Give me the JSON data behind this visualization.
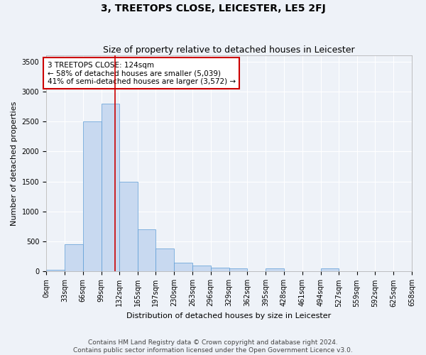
{
  "title": "3, TREETOPS CLOSE, LEICESTER, LE5 2FJ",
  "subtitle": "Size of property relative to detached houses in Leicester",
  "xlabel": "Distribution of detached houses by size in Leicester",
  "ylabel": "Number of detached properties",
  "bin_edges": [
    0,
    33,
    66,
    99,
    132,
    165,
    197,
    230,
    263,
    296,
    329,
    362,
    395,
    428,
    461,
    494,
    527,
    559,
    592,
    625,
    658
  ],
  "bar_heights": [
    30,
    450,
    2500,
    2800,
    1500,
    700,
    380,
    150,
    100,
    60,
    50,
    10,
    55,
    10,
    5,
    55,
    5,
    5,
    5,
    5
  ],
  "bar_color": "#c8d9f0",
  "bar_edge_color": "#5b9bd5",
  "property_size": 124,
  "vline_color": "#cc0000",
  "annotation_text": "3 TREETOPS CLOSE: 124sqm\n← 58% of detached houses are smaller (5,039)\n41% of semi-detached houses are larger (3,572) →",
  "annotation_box_color": "#ffffff",
  "annotation_box_edge_color": "#cc0000",
  "ylim": [
    0,
    3600
  ],
  "yticks": [
    0,
    500,
    1000,
    1500,
    2000,
    2500,
    3000,
    3500
  ],
  "footer_line1": "Contains HM Land Registry data © Crown copyright and database right 2024.",
  "footer_line2": "Contains public sector information licensed under the Open Government Licence v3.0.",
  "background_color": "#eef2f8",
  "plot_bg_color": "#eef2f8",
  "grid_color": "#ffffff",
  "title_fontsize": 10,
  "subtitle_fontsize": 9,
  "axis_label_fontsize": 8,
  "tick_label_fontsize": 7,
  "annotation_fontsize": 7.5,
  "footer_fontsize": 6.5
}
